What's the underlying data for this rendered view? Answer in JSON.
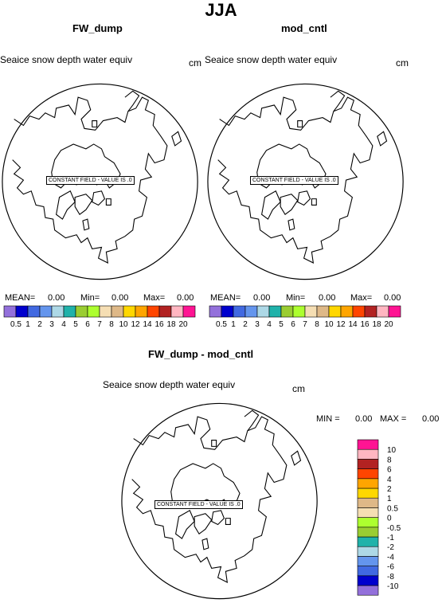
{
  "title": "JJA",
  "panels": [
    {
      "id": "fw_dump",
      "title": "FW_dump",
      "variable": "Seaice snow depth water equiv",
      "units": "cm",
      "stats": {
        "mean_label": "MEAN=",
        "mean": "0.00",
        "min_label": "Min=",
        "min": "0.00",
        "max_label": "Max=",
        "max": "0.00"
      },
      "constant_note": "CONSTANT FIELD - VALUE IS .0"
    },
    {
      "id": "mod_cntl",
      "title": "mod_cntl",
      "variable": "Seaice snow depth water equiv",
      "units": "cm",
      "stats": {
        "mean_label": "MEAN=",
        "mean": "0.00",
        "min_label": "Min=",
        "min": "0.00",
        "max_label": "Max=",
        "max": "0.00"
      },
      "constant_note": "CONSTANT FIELD - VALUE IS .0"
    }
  ],
  "diff_panel": {
    "title": "FW_dump - mod_cntl",
    "variable": "Seaice snow depth water equiv",
    "units": "cm",
    "stats": {
      "min_label": "MIN =",
      "min": "0.00",
      "max_label": "MAX =",
      "max": "0.00"
    },
    "constant_note": "CONSTANT FIELD - VALUE IS .0"
  },
  "colorbar": {
    "colors": [
      "#9370db",
      "#0000cd",
      "#4169e1",
      "#6495ed",
      "#add8e6",
      "#20b2aa",
      "#9acd32",
      "#adff2f",
      "#f5deb3",
      "#deb887",
      "#ffd700",
      "#ffa500",
      "#ff4500",
      "#b22222",
      "#ffb6c1",
      "#ff1493"
    ],
    "labels": [
      "0.5",
      "1",
      "2",
      "3",
      "4",
      "5",
      "6",
      "7",
      "8",
      "10",
      "12",
      "14",
      "16",
      "18",
      "20"
    ]
  },
  "diff_colorbar": {
    "colors": [
      "#9370db",
      "#0000cd",
      "#4169e1",
      "#6495ed",
      "#add8e6",
      "#20b2aa",
      "#9acd32",
      "#adff2f",
      "#f5deb3",
      "#deb887",
      "#ffd700",
      "#ffa500",
      "#ff4500",
      "#b22222",
      "#ffb6c1",
      "#ff1493"
    ],
    "labels": [
      "-10",
      "-8",
      "-6",
      "-4",
      "-2",
      "-1",
      "-0.5",
      "0",
      "0.5",
      "1",
      "2",
      "4",
      "6",
      "8",
      "10"
    ]
  },
  "chart_data": [
    {
      "type": "heatmap",
      "title": "FW_dump",
      "subtitle": "Seaice snow depth water equiv",
      "units": "cm",
      "constant_value": 0.0,
      "mean": 0.0,
      "min": 0.0,
      "max": 0.0,
      "levels": [
        0.5,
        1,
        2,
        3,
        4,
        5,
        6,
        7,
        8,
        10,
        12,
        14,
        16,
        18,
        20
      ]
    },
    {
      "type": "heatmap",
      "title": "mod_cntl",
      "subtitle": "Seaice snow depth water equiv",
      "units": "cm",
      "constant_value": 0.0,
      "mean": 0.0,
      "min": 0.0,
      "max": 0.0,
      "levels": [
        0.5,
        1,
        2,
        3,
        4,
        5,
        6,
        7,
        8,
        10,
        12,
        14,
        16,
        18,
        20
      ]
    },
    {
      "type": "heatmap",
      "title": "FW_dump - mod_cntl",
      "subtitle": "Seaice snow depth water equiv",
      "units": "cm",
      "constant_value": 0.0,
      "min": 0.0,
      "max": 0.0,
      "levels": [
        -10,
        -8,
        -6,
        -4,
        -2,
        -1,
        -0.5,
        0,
        0.5,
        1,
        2,
        4,
        6,
        8,
        10
      ]
    }
  ]
}
